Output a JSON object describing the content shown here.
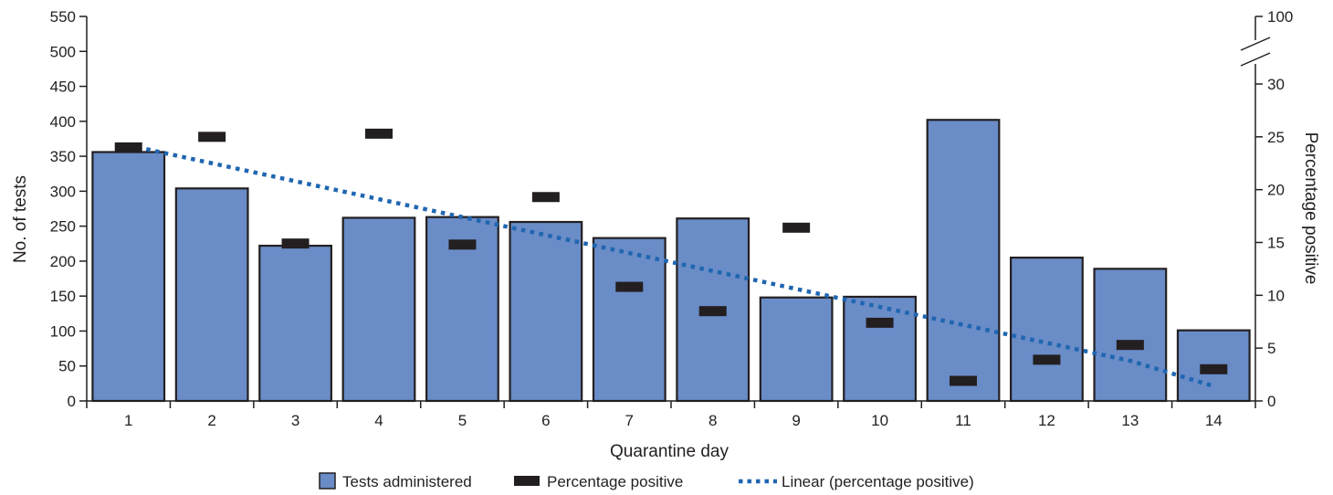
{
  "chart_data": {
    "type": "bar",
    "title": "",
    "xlabel": "Quarantine day",
    "ylabel": "No. of tests",
    "y2label": "Percentage positive",
    "categories": [
      "1",
      "2",
      "3",
      "4",
      "5",
      "6",
      "7",
      "8",
      "9",
      "10",
      "11",
      "12",
      "13",
      "14"
    ],
    "ylim": [
      0,
      550
    ],
    "yticks": [
      "0",
      "50",
      "100",
      "150",
      "200",
      "250",
      "300",
      "350",
      "400",
      "450",
      "500",
      "550"
    ],
    "y2ticks_lower": [
      "0",
      "5",
      "10",
      "15",
      "20",
      "25",
      "30"
    ],
    "y2ticks_upper": [
      "100"
    ],
    "y2_scale_break": {
      "lower_range": [
        0,
        33
      ],
      "upper_value": 100
    },
    "grid": false,
    "legend_position": "bottom",
    "series": [
      {
        "name": "Tests administered",
        "kind": "bar",
        "axis": "left",
        "color": "#6a8cc7",
        "values": [
          356,
          304,
          222,
          262,
          263,
          256,
          233,
          261,
          148,
          149,
          402,
          205,
          189,
          101
        ]
      },
      {
        "name": "Percentage positive",
        "kind": "marker",
        "axis": "right",
        "color": "#231f20",
        "values": [
          24.0,
          25.0,
          14.9,
          25.3,
          14.8,
          19.3,
          10.8,
          8.5,
          16.4,
          7.4,
          1.9,
          3.9,
          5.3,
          3.0
        ]
      },
      {
        "name": "Linear (percentage positive)",
        "kind": "trendline",
        "axis": "right",
        "color": "#1f66b1",
        "values": [
          24.2,
          22.5,
          20.8,
          19.1,
          17.4,
          15.7,
          14.0,
          12.3,
          10.6,
          8.9,
          7.2,
          5.5,
          3.8,
          1.4
        ]
      }
    ]
  }
}
